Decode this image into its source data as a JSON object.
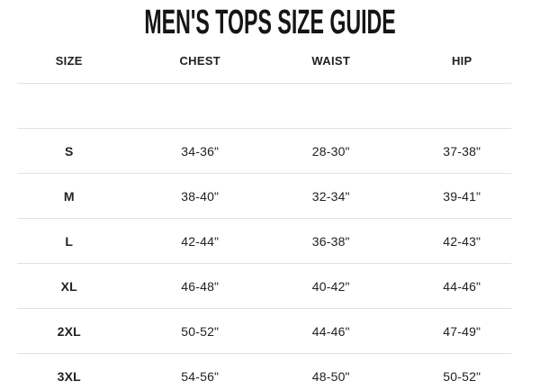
{
  "title": "MEN'S TOPS SIZE GUIDE",
  "table": {
    "headers": [
      "SIZE",
      "CHEST",
      "WAIST",
      "HIP"
    ],
    "rows": [
      [
        "",
        "",
        "",
        ""
      ],
      [
        "S",
        "34-36\"",
        "28-30\"",
        "37-38\""
      ],
      [
        "M",
        "38-40\"",
        "32-34\"",
        "39-41\""
      ],
      [
        "L",
        "42-44\"",
        "36-38\"",
        "42-43\""
      ],
      [
        "XL",
        "46-48\"",
        "40-42\"",
        "44-46\""
      ],
      [
        "2XL",
        "50-52\"",
        "44-46\"",
        "47-49\""
      ],
      [
        "3XL",
        "54-56\"",
        "48-50\"",
        "50-52\""
      ]
    ]
  },
  "chart_data": {
    "type": "table",
    "title": "MEN'S TOPS SIZE GUIDE",
    "columns": [
      "SIZE",
      "CHEST",
      "WAIST",
      "HIP"
    ],
    "rows": [
      {
        "size": "S",
        "chest": "34-36\"",
        "waist": "28-30\"",
        "hip": "37-38\""
      },
      {
        "size": "M",
        "chest": "38-40\"",
        "waist": "32-34\"",
        "hip": "39-41\""
      },
      {
        "size": "L",
        "chest": "42-44\"",
        "waist": "36-38\"",
        "hip": "42-43\""
      },
      {
        "size": "XL",
        "chest": "46-48\"",
        "waist": "40-42\"",
        "hip": "44-46\""
      },
      {
        "size": "2XL",
        "chest": "50-52\"",
        "waist": "44-46\"",
        "hip": "47-49\""
      },
      {
        "size": "3XL",
        "chest": "54-56\"",
        "waist": "48-50\"",
        "hip": "50-52\""
      }
    ],
    "units": "inches",
    "notes": "first visible body row is empty; last row (3XL) is clipped by viewport bottom"
  },
  "colors": {
    "text": "#212121",
    "title_text": "#151515",
    "divider": "#e1e1e1",
    "background": "#ffffff"
  }
}
